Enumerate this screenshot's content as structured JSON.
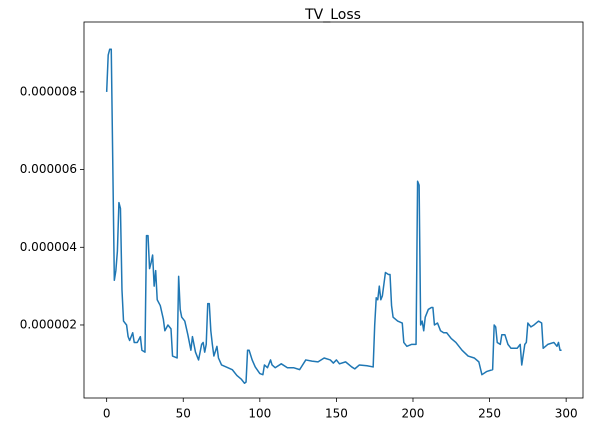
{
  "chart_data": {
    "type": "line",
    "title": "TV_Loss",
    "x": [
      0,
      1,
      2,
      3,
      5,
      6,
      7,
      8,
      9,
      10,
      11,
      13,
      14,
      15,
      17,
      18,
      20,
      22,
      23,
      25,
      26,
      27,
      28,
      29,
      30,
      31,
      32,
      33,
      35,
      37,
      38,
      40,
      42,
      43,
      46,
      47,
      48,
      49,
      51,
      53,
      55,
      56,
      58,
      60,
      62,
      63,
      64,
      65,
      66,
      67,
      68,
      69,
      70,
      72,
      73,
      75,
      78,
      82,
      85,
      88,
      90,
      91,
      92,
      93,
      95,
      97,
      100,
      102,
      103,
      105,
      107,
      108,
      110,
      114,
      118,
      122,
      126,
      130,
      134,
      138,
      142,
      146,
      148,
      150,
      152,
      156,
      160,
      162,
      165,
      170,
      174,
      175,
      176,
      177,
      178,
      179,
      180,
      182,
      184,
      185,
      186,
      187,
      190,
      193,
      194,
      196,
      199,
      202,
      203,
      204,
      205,
      206,
      207,
      208,
      210,
      212,
      213,
      214,
      216,
      218,
      220,
      222,
      225,
      228,
      232,
      236,
      240,
      243,
      245,
      248,
      252,
      253,
      254,
      255,
      257,
      258,
      260,
      262,
      264,
      268,
      270,
      271,
      273,
      274,
      275,
      277,
      279,
      282,
      284,
      285,
      288,
      292,
      294,
      295,
      296,
      297
    ],
    "series": [
      {
        "color": "#1f77b4",
        "values": [
          8e-06,
          8.95e-06,
          9.1e-06,
          9.1e-06,
          3.15e-06,
          3.4e-06,
          3.9e-06,
          5.15e-06,
          5e-06,
          2.9e-06,
          2.1e-06,
          2e-06,
          1.7e-06,
          1.6e-06,
          1.8e-06,
          1.55e-06,
          1.55e-06,
          1.7e-06,
          1.35e-06,
          1.3e-06,
          4.3e-06,
          4.3e-06,
          3.45e-06,
          3.6e-06,
          3.8e-06,
          3e-06,
          3.4e-06,
          2.65e-06,
          2.5e-06,
          2.15e-06,
          1.85e-06,
          2e-06,
          1.9e-06,
          1.2e-06,
          1.15e-06,
          3.25e-06,
          2.4e-06,
          2.2e-06,
          2.1e-06,
          1.75e-06,
          1.35e-06,
          1.7e-06,
          1.3e-06,
          1.1e-06,
          1.5e-06,
          1.55e-06,
          1.3e-06,
          1.5e-06,
          2.55e-06,
          2.55e-06,
          1.85e-06,
          1.5e-06,
          1.2e-06,
          1.45e-06,
          1.15e-06,
          9.7e-07,
          9.2e-07,
          8.5e-07,
          7e-07,
          6e-07,
          5e-07,
          5.3e-07,
          1.35e-06,
          1.35e-06,
          1.1e-06,
          9.2e-07,
          7.5e-07,
          7.2e-07,
          9.7e-07,
          9e-07,
          1.1e-06,
          9.7e-07,
          9e-07,
          1e-06,
          9e-07,
          9e-07,
          8.5e-07,
          1.1e-06,
          1.07e-06,
          1.05e-06,
          1.15e-06,
          1.1e-06,
          1.02e-06,
          1.1e-06,
          1e-06,
          1.05e-06,
          9.2e-07,
          8.7e-07,
          9.7e-07,
          9.5e-07,
          9.2e-07,
          2e-06,
          2.7e-06,
          2.65e-06,
          3e-06,
          2.65e-06,
          2.75e-06,
          3.35e-06,
          3.3e-06,
          3.3e-06,
          2.5e-06,
          2.2e-06,
          2.1e-06,
          2.05e-06,
          1.55e-06,
          1.45e-06,
          1.5e-06,
          1.5e-06,
          5.7e-06,
          5.6e-06,
          2e-06,
          2.1e-06,
          1.85e-06,
          2.2e-06,
          2.4e-06,
          2.45e-06,
          2.45e-06,
          2e-06,
          2.05e-06,
          1.85e-06,
          1.8e-06,
          1.8e-06,
          1.65e-06,
          1.55e-06,
          1.35e-06,
          1.2e-06,
          1.15e-06,
          1.05e-06,
          7.2e-07,
          8e-07,
          8.5e-07,
          2e-06,
          1.95e-06,
          1.55e-06,
          1.5e-06,
          1.75e-06,
          1.75e-06,
          1.5e-06,
          1.4e-06,
          1.4e-06,
          1.5e-06,
          9.7e-07,
          1.5e-06,
          1.55e-06,
          2.05e-06,
          1.95e-06,
          2e-06,
          2.1e-06,
          2.05e-06,
          1.4e-06,
          1.5e-06,
          1.55e-06,
          1.45e-06,
          1.55e-06,
          1.35e-06,
          1.35e-06
        ]
      }
    ],
    "xlim": [
      -14.8,
      311
    ],
    "xticks": [
      0,
      50,
      100,
      150,
      200,
      250,
      300
    ],
    "ylim": [
      1.2e-07,
      9.8e-06
    ],
    "yticks": [
      2e-06,
      4e-06,
      6e-06,
      8e-06
    ]
  }
}
